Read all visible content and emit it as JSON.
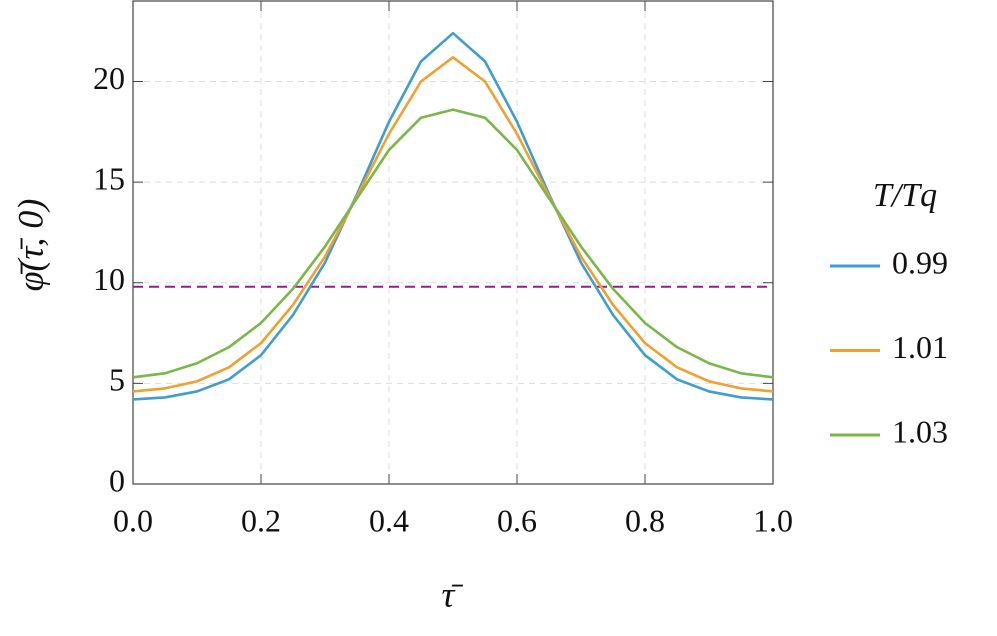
{
  "chart_data": {
    "type": "line",
    "x_label": "τ̄",
    "y_label": "φ̄(τ̄, 0)",
    "legend_title": "T/Tq",
    "legend": "right",
    "grid": true,
    "x": [
      0,
      0.05,
      0.1,
      0.15,
      0.2,
      0.25,
      0.3,
      0.35,
      0.4,
      0.45,
      0.5,
      0.55,
      0.6,
      0.65,
      0.7,
      0.75,
      0.8,
      0.85,
      0.9,
      0.95,
      1
    ],
    "series": [
      {
        "name": "0.99",
        "color": "#3f9dd0",
        "values": [
          4.2,
          4.3,
          4.6,
          5.2,
          6.4,
          8.4,
          11.0,
          14.4,
          18.0,
          21.0,
          22.4,
          21.0,
          18.0,
          14.4,
          11.0,
          8.4,
          6.4,
          5.2,
          4.6,
          4.3,
          4.2
        ]
      },
      {
        "name": "1.01",
        "color": "#f0a030",
        "values": [
          4.6,
          4.75,
          5.1,
          5.8,
          7.0,
          8.9,
          11.3,
          14.3,
          17.4,
          20.0,
          21.2,
          20.0,
          17.4,
          14.3,
          11.3,
          8.9,
          7.0,
          5.8,
          5.1,
          4.75,
          4.6
        ]
      },
      {
        "name": "1.03",
        "color": "#7ab648",
        "values": [
          5.3,
          5.5,
          6.0,
          6.8,
          8.0,
          9.7,
          11.8,
          14.2,
          16.6,
          18.2,
          18.6,
          18.2,
          16.6,
          14.2,
          11.8,
          9.7,
          8.0,
          6.8,
          6.0,
          5.5,
          5.3
        ]
      }
    ],
    "reference_line": 9.8,
    "reference_color": "#961a96",
    "xlim": [
      0,
      1
    ],
    "ylim": [
      0,
      24
    ],
    "xticks": [
      {
        "value": 0,
        "label": "0.0"
      },
      0.2,
      0.4,
      0.6,
      0.8,
      {
        "value": 1,
        "label": "1.0"
      }
    ],
    "yticks": [
      0,
      5,
      10,
      15,
      20
    ]
  }
}
